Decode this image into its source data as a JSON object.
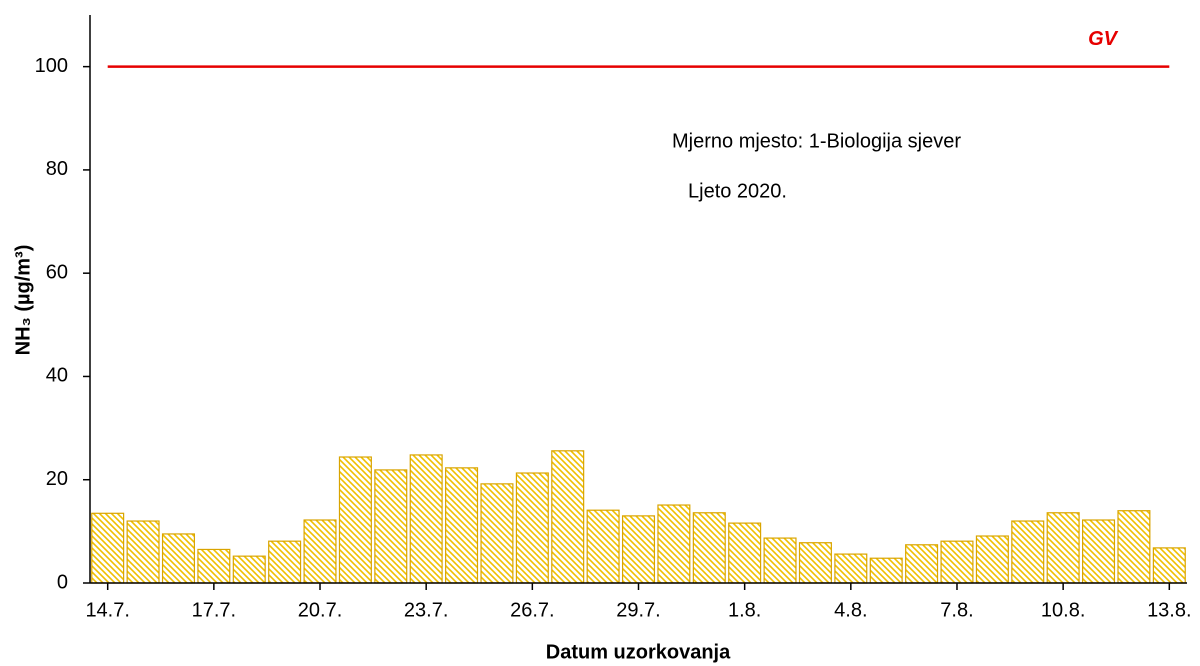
{
  "chart_data": {
    "type": "bar",
    "x_label": "Datum uzorkovanja",
    "y_label": "NH₃ (µg/m³)",
    "annotations": [
      "Mjerno mjesto: 1-Biologija sjever",
      "Ljeto 2020."
    ],
    "categories": [
      "14.7.",
      null,
      null,
      "17.7.",
      null,
      null,
      "20.7.",
      null,
      null,
      "23.7.",
      null,
      null,
      "26.7.",
      null,
      null,
      "29.7.",
      null,
      null,
      "1.8.",
      null,
      null,
      "4.8.",
      null,
      null,
      "7.8.",
      null,
      null,
      "10.8.",
      null,
      null,
      "13.8."
    ],
    "values": [
      13.5,
      12,
      9.5,
      6.5,
      5.2,
      8.1,
      12.2,
      24.4,
      21.9,
      24.8,
      22.3,
      19.2,
      21.3,
      25.6,
      14.1,
      13,
      15.1,
      13.6,
      11.6,
      8.7,
      7.8,
      5.6,
      4.8,
      7.4,
      8.1,
      9.1,
      12,
      13.6,
      12.2,
      14,
      6.8
    ],
    "color": "#f0c000",
    "edge_color": "#d9a400",
    "hatch": true,
    "reference_lines": [
      {
        "value": 100,
        "label": "GV",
        "color": "#e60000"
      }
    ],
    "ylim": [
      0,
      110
    ],
    "yticks": [
      0,
      20,
      40,
      60,
      80,
      100
    ],
    "grid": false
  }
}
